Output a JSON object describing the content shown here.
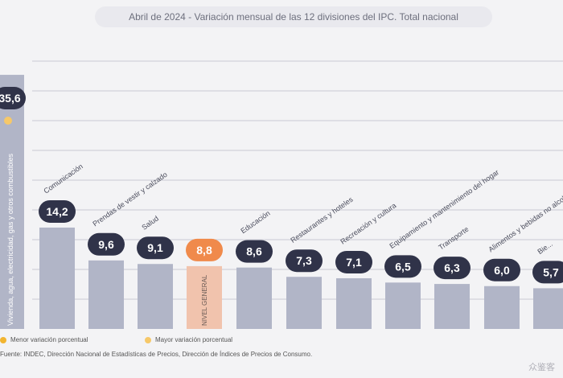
{
  "chart_data": {
    "type": "bar",
    "title": "Abril de 2024 - Variación mensual de las 12 divisiones del IPC. Total nacional",
    "categories": [
      "Vivienda, agua, electricidad, gas y otros combustibles",
      "Comunicación",
      "Prendas de vestir y calzado",
      "Salud",
      "NIVEL GENERAL",
      "Educación",
      "Restaurantes y hoteles",
      "Recreación y cultura",
      "Equipamiento y mantenimiento del hogar",
      "Transporte",
      "Alimentos y bebidas no alcohólicas",
      "Bienes y servicios varios"
    ],
    "values": [
      35.6,
      14.2,
      9.6,
      9.1,
      8.8,
      8.6,
      7.3,
      7.1,
      6.5,
      6.3,
      6.0,
      5.7
    ],
    "value_labels": [
      "35,6",
      "14,2",
      "9,6",
      "9,1",
      "8,8",
      "8,6",
      "7,3",
      "7,1",
      "6,5",
      "6,3",
      "6,0",
      "5,7"
    ],
    "bar_labels": [
      "",
      "Comunicación",
      "Prendas de vestir y calzado",
      "Salud",
      "",
      "Educación",
      "Restaurantes y hoteles",
      "Recreación y cultura",
      "Equipamiento y mantenimiento del hogar",
      "Transporte",
      "Alimentos y bebidas no alcohólicas",
      "Bie..."
    ],
    "inner_label_first": "Vivienda, agua, electricidad, gas y otros combustibles",
    "general_label": "NIVEL GENERAL",
    "xlabel": "",
    "ylabel": "",
    "ylim": [
      0,
      40
    ],
    "grid": true
  },
  "legend": {
    "items": [
      {
        "label": "Menor variación porcentual",
        "color": "#f2b531"
      },
      {
        "label": "Mayor variación porcentual",
        "color": "#f6c869"
      }
    ]
  },
  "source": "Fuente: INDEC, Dirección Nacional de Estadísticas de Precios, Dirección de Índices de Precios de Consumo.",
  "watermark": "众鉴客",
  "colors": {
    "bar": "#b1b5c7",
    "bar_general": "#f1c3ad",
    "badge": "#303349",
    "badge_general": "#f08a4b",
    "grid": "#c8c9d3"
  }
}
